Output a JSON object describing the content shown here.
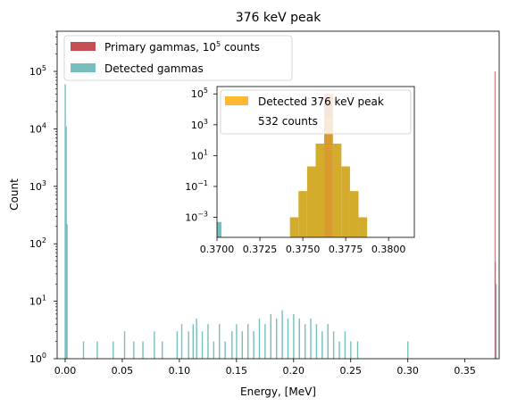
{
  "chart_data": {
    "type": "bar",
    "title": "376 keV peak",
    "xlabel": "Energy, [MeV]",
    "ylabel": "Count",
    "yscale": "log",
    "xlim": [
      -0.007,
      0.38
    ],
    "ylim": [
      1,
      500000
    ],
    "xticks": [
      {
        "v": 0.0,
        "label": "0.00"
      },
      {
        "v": 0.05,
        "label": "0.05"
      },
      {
        "v": 0.1,
        "label": "0.10"
      },
      {
        "v": 0.15,
        "label": "0.15"
      },
      {
        "v": 0.2,
        "label": "0.20"
      },
      {
        "v": 0.25,
        "label": "0.25"
      },
      {
        "v": 0.3,
        "label": "0.30"
      },
      {
        "v": 0.35,
        "label": "0.35"
      }
    ],
    "yticks": [
      {
        "v": 1,
        "base": "10",
        "exp": "0"
      },
      {
        "v": 10,
        "base": "10",
        "exp": "1"
      },
      {
        "v": 100,
        "base": "10",
        "exp": "2"
      },
      {
        "v": 1000,
        "base": "10",
        "exp": "3"
      },
      {
        "v": 10000,
        "base": "10",
        "exp": "4"
      },
      {
        "v": 100000,
        "base": "10",
        "exp": "5"
      }
    ],
    "legend": {
      "placement": "upper-left",
      "entries": [
        {
          "text": "Primary gammas, 10",
          "sup": "5",
          "suffix": " counts",
          "color": "#c44e52"
        },
        {
          "text": "Detected gammas",
          "sup": "",
          "suffix": "",
          "color": "#76bfbf"
        }
      ]
    },
    "series": [
      {
        "name": "Primary gammas",
        "color": "#c44e52",
        "bars": [
          {
            "x": 0.3765,
            "y": 100000
          }
        ]
      },
      {
        "name": "Detected gammas",
        "color": "#76bfbf",
        "bars": [
          {
            "x": 0.0,
            "y": 60000
          },
          {
            "x": 0.0008,
            "y": 11000
          },
          {
            "x": 0.0016,
            "y": 220
          },
          {
            "x": 0.005,
            "y": 1
          },
          {
            "x": 0.016,
            "y": 2
          },
          {
            "x": 0.018,
            "y": 1
          },
          {
            "x": 0.028,
            "y": 2
          },
          {
            "x": 0.035,
            "y": 1
          },
          {
            "x": 0.042,
            "y": 2
          },
          {
            "x": 0.048,
            "y": 1
          },
          {
            "x": 0.052,
            "y": 3
          },
          {
            "x": 0.06,
            "y": 2
          },
          {
            "x": 0.068,
            "y": 2
          },
          {
            "x": 0.074,
            "y": 1
          },
          {
            "x": 0.078,
            "y": 3
          },
          {
            "x": 0.085,
            "y": 2
          },
          {
            "x": 0.092,
            "y": 1
          },
          {
            "x": 0.098,
            "y": 3
          },
          {
            "x": 0.102,
            "y": 4
          },
          {
            "x": 0.108,
            "y": 3
          },
          {
            "x": 0.112,
            "y": 4
          },
          {
            "x": 0.115,
            "y": 5
          },
          {
            "x": 0.12,
            "y": 3
          },
          {
            "x": 0.125,
            "y": 4
          },
          {
            "x": 0.13,
            "y": 2
          },
          {
            "x": 0.135,
            "y": 4
          },
          {
            "x": 0.14,
            "y": 2
          },
          {
            "x": 0.146,
            "y": 3
          },
          {
            "x": 0.15,
            "y": 4
          },
          {
            "x": 0.155,
            "y": 3
          },
          {
            "x": 0.16,
            "y": 4
          },
          {
            "x": 0.165,
            "y": 3
          },
          {
            "x": 0.17,
            "y": 5
          },
          {
            "x": 0.175,
            "y": 4
          },
          {
            "x": 0.18,
            "y": 6
          },
          {
            "x": 0.185,
            "y": 5
          },
          {
            "x": 0.19,
            "y": 7
          },
          {
            "x": 0.195,
            "y": 5
          },
          {
            "x": 0.2,
            "y": 6
          },
          {
            "x": 0.205,
            "y": 5
          },
          {
            "x": 0.21,
            "y": 4
          },
          {
            "x": 0.215,
            "y": 5
          },
          {
            "x": 0.22,
            "y": 4
          },
          {
            "x": 0.225,
            "y": 3
          },
          {
            "x": 0.23,
            "y": 4
          },
          {
            "x": 0.235,
            "y": 3
          },
          {
            "x": 0.24,
            "y": 2
          },
          {
            "x": 0.245,
            "y": 3
          },
          {
            "x": 0.25,
            "y": 2
          },
          {
            "x": 0.256,
            "y": 2
          },
          {
            "x": 0.265,
            "y": 1
          },
          {
            "x": 0.275,
            "y": 1
          },
          {
            "x": 0.285,
            "y": 1
          },
          {
            "x": 0.295,
            "y": 1
          },
          {
            "x": 0.3,
            "y": 2
          },
          {
            "x": 0.315,
            "y": 1
          },
          {
            "x": 0.325,
            "y": 1
          },
          {
            "x": 0.335,
            "y": 1
          },
          {
            "x": 0.35,
            "y": 1
          },
          {
            "x": 0.3765,
            "y": 48
          },
          {
            "x": 0.3773,
            "y": 20
          }
        ]
      }
    ],
    "inset": {
      "xlim": [
        0.37,
        0.3815
      ],
      "ylim": [
        5e-05,
        300000
      ],
      "xticks": [
        {
          "v": 0.37,
          "label": "0.3700"
        },
        {
          "v": 0.3725,
          "label": "0.3725"
        },
        {
          "v": 0.375,
          "label": "0.3750"
        },
        {
          "v": 0.3775,
          "label": "0.3775"
        },
        {
          "v": 0.38,
          "label": "0.3800"
        }
      ],
      "yticks": [
        {
          "v": 0.001,
          "base": "10",
          "exp": "−3"
        },
        {
          "v": 0.1,
          "base": "10",
          "exp": "−1"
        },
        {
          "v": 10,
          "base": "10",
          "exp": "1"
        },
        {
          "v": 1000,
          "base": "10",
          "exp": "3"
        },
        {
          "v": 100000,
          "base": "10",
          "exp": "5"
        }
      ],
      "legend": {
        "placement": "upper-right",
        "entries": [
          {
            "text": "Detected 376 keV peak",
            "color": "#ffb833"
          },
          {
            "text": "532 counts",
            "color": null
          }
        ]
      },
      "bin_width": 0.0005,
      "peak_bins": [
        {
          "x": 0.3745,
          "y": 0.001
        },
        {
          "x": 0.375,
          "y": 0.05
        },
        {
          "x": 0.3755,
          "y": 2
        },
        {
          "x": 0.376,
          "y": 60
        },
        {
          "x": 0.3765,
          "y": 60000
        },
        {
          "x": 0.377,
          "y": 60
        },
        {
          "x": 0.3775,
          "y": 2
        },
        {
          "x": 0.378,
          "y": 0.05
        },
        {
          "x": 0.3785,
          "y": 0.001
        }
      ],
      "peak_color": "#d4ac2c",
      "primary_bar": {
        "x": 0.3765,
        "y": 100000,
        "color": "#d96c5a"
      },
      "center_bar": {
        "x": 0.3765,
        "y": 100000,
        "color": "#d99a2e"
      },
      "edge_bar": {
        "x": 0.37,
        "y": 0.0005,
        "color": "#76bfbf"
      }
    }
  }
}
